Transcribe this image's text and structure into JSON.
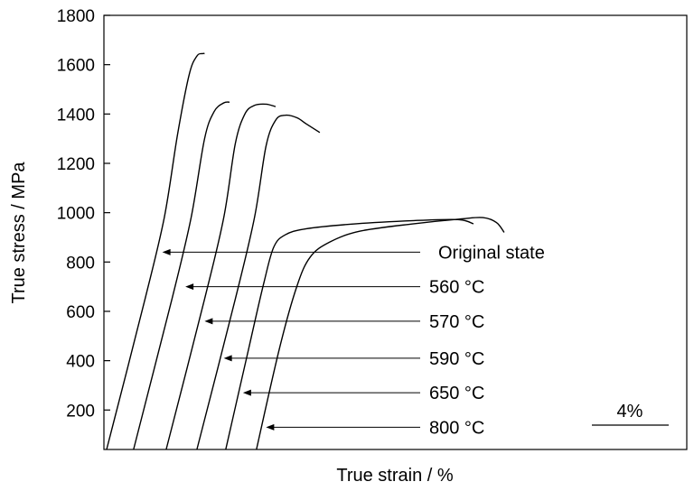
{
  "chart_data": {
    "type": "line",
    "xlabel": "True strain / %",
    "ylabel": "True stress / MPa",
    "ylim": [
      40,
      1800
    ],
    "y_ticks": [
      200,
      400,
      600,
      800,
      1000,
      1200,
      1400,
      1600,
      1800
    ],
    "x_axis_tick_labels": false,
    "grid": false,
    "scale_bar_label": "4%",
    "series": [
      {
        "name": "Original state",
        "label": "Original state",
        "points": [
          [
            0,
            40
          ],
          [
            2.0,
            650
          ],
          [
            3.0,
            980
          ],
          [
            3.7,
            1320
          ],
          [
            4.3,
            1560
          ],
          [
            4.7,
            1635
          ],
          [
            5.0,
            1645
          ],
          [
            5.1,
            1645
          ]
        ]
      },
      {
        "name": "560 °C",
        "label": "560 °C",
        "points": [
          [
            1.4,
            40
          ],
          [
            3.4,
            650
          ],
          [
            4.4,
            980
          ],
          [
            5.1,
            1300
          ],
          [
            5.6,
            1410
          ],
          [
            6.1,
            1445
          ],
          [
            6.4,
            1448
          ]
        ]
      },
      {
        "name": "570 °C",
        "label": "570 °C",
        "points": [
          [
            3.1,
            40
          ],
          [
            5.1,
            650
          ],
          [
            6.1,
            980
          ],
          [
            6.7,
            1280
          ],
          [
            7.2,
            1400
          ],
          [
            7.7,
            1435
          ],
          [
            8.3,
            1440
          ],
          [
            8.8,
            1430
          ]
        ]
      },
      {
        "name": "590 °C",
        "label": "590 °C",
        "points": [
          [
            4.7,
            40
          ],
          [
            6.7,
            650
          ],
          [
            7.7,
            980
          ],
          [
            8.3,
            1270
          ],
          [
            8.8,
            1375
          ],
          [
            9.3,
            1395
          ],
          [
            9.9,
            1385
          ],
          [
            10.4,
            1360
          ],
          [
            11.1,
            1325
          ]
        ]
      },
      {
        "name": "650 °C",
        "label": "650 °C",
        "points": [
          [
            6.2,
            40
          ],
          [
            7.4,
            450
          ],
          [
            8.2,
            720
          ],
          [
            8.7,
            860
          ],
          [
            9.3,
            910
          ],
          [
            10.4,
            935
          ],
          [
            13.0,
            955
          ],
          [
            16.0,
            968
          ],
          [
            18.3,
            972
          ],
          [
            19.1,
            955
          ]
        ]
      },
      {
        "name": "800 °C",
        "label": "800 °C",
        "points": [
          [
            7.8,
            40
          ],
          [
            9.0,
            450
          ],
          [
            9.9,
            700
          ],
          [
            10.6,
            820
          ],
          [
            11.6,
            880
          ],
          [
            13.2,
            925
          ],
          [
            16.0,
            955
          ],
          [
            18.5,
            975
          ],
          [
            19.6,
            980
          ],
          [
            20.3,
            960
          ],
          [
            20.7,
            920
          ]
        ]
      }
    ],
    "annotations": [
      {
        "label": "Original state",
        "arrow_to": [
          2.9,
          840
        ]
      },
      {
        "label": "560 °C",
        "arrow_to": [
          4.1,
          700
        ]
      },
      {
        "label": "570 °C",
        "arrow_to": [
          5.1,
          560
        ]
      },
      {
        "label": "590 °C",
        "arrow_to": [
          6.1,
          410
        ]
      },
      {
        "label": "650 °C",
        "arrow_to": [
          7.1,
          270
        ]
      },
      {
        "label": "800 °C",
        "arrow_to": [
          8.3,
          130
        ]
      }
    ]
  }
}
